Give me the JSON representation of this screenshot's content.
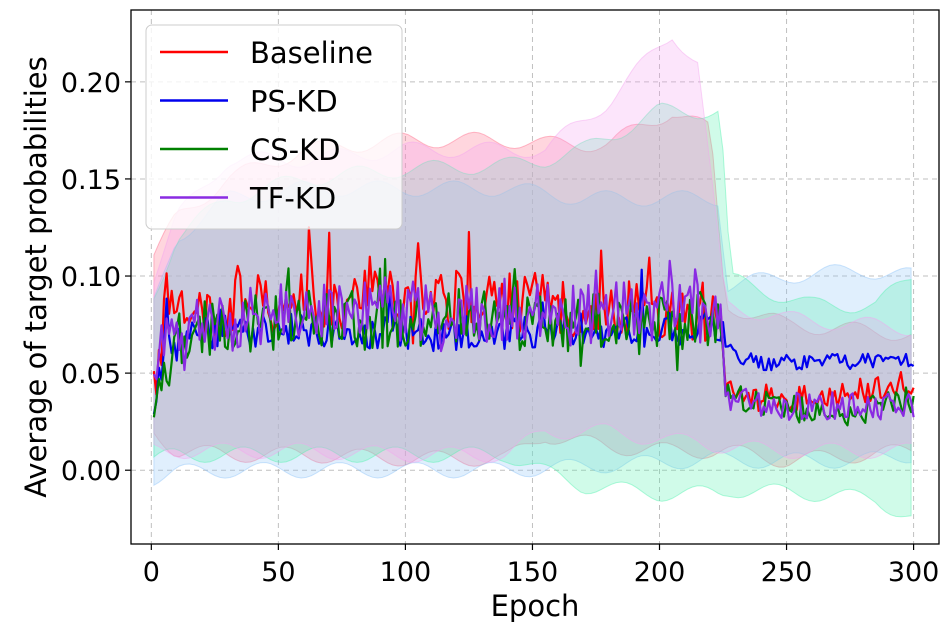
{
  "chart_data": {
    "type": "line",
    "title": "",
    "xlabel": "Epoch",
    "ylabel": "Average of target probabilities",
    "xlim": [
      -8,
      310
    ],
    "ylim": [
      -0.038,
      0.237
    ],
    "xticks": [
      0,
      50,
      100,
      150,
      200,
      250,
      300
    ],
    "yticks": [
      0.0,
      0.05,
      0.1,
      0.15,
      0.2
    ],
    "xtick_labels": [
      "0",
      "50",
      "100",
      "150",
      "200",
      "250",
      "300"
    ],
    "ytick_labels": [
      "0.00",
      "0.05",
      "0.10",
      "0.15",
      "0.20"
    ],
    "grid": true,
    "legend_position": "top-left",
    "series": [
      {
        "name": "Baseline",
        "color": "#ff0000",
        "band_color": "#ff6b8a",
        "mean_points": [
          [
            1,
            0.04
          ],
          [
            5,
            0.075
          ],
          [
            15,
            0.082
          ],
          [
            30,
            0.085
          ],
          [
            50,
            0.087
          ],
          [
            70,
            0.088
          ],
          [
            90,
            0.089
          ],
          [
            110,
            0.088
          ],
          [
            130,
            0.087
          ],
          [
            150,
            0.086
          ],
          [
            170,
            0.084
          ],
          [
            190,
            0.083
          ],
          [
            210,
            0.08
          ],
          [
            224,
            0.082
          ],
          [
            226,
            0.04
          ],
          [
            232,
            0.038
          ],
          [
            250,
            0.036
          ],
          [
            270,
            0.038
          ],
          [
            290,
            0.043
          ],
          [
            300,
            0.046
          ]
        ],
        "noise": 0.016,
        "band": [
          [
            1,
            0.11,
            0.02
          ],
          [
            10,
            0.13,
            0.01
          ],
          [
            30,
            0.15,
            0.008
          ],
          [
            60,
            0.165,
            0.008
          ],
          [
            100,
            0.17,
            0.006
          ],
          [
            140,
            0.17,
            0.006
          ],
          [
            155,
            0.168,
            0.018
          ],
          [
            180,
            0.168,
            0.012
          ],
          [
            205,
            0.185,
            0.01
          ],
          [
            220,
            0.175,
            0.01
          ],
          [
            226,
            0.085,
            0.01
          ],
          [
            250,
            0.075,
            0.005
          ],
          [
            300,
            0.07,
            0.01
          ]
        ]
      },
      {
        "name": "PS-KD",
        "color": "#0000ee",
        "band_color": "#8ec4f8",
        "mean_points": [
          [
            1,
            0.035
          ],
          [
            5,
            0.062
          ],
          [
            20,
            0.07
          ],
          [
            50,
            0.072
          ],
          [
            80,
            0.072
          ],
          [
            110,
            0.07
          ],
          [
            140,
            0.071
          ],
          [
            170,
            0.072
          ],
          [
            200,
            0.072
          ],
          [
            224,
            0.074
          ],
          [
            226,
            0.062
          ],
          [
            240,
            0.055
          ],
          [
            270,
            0.056
          ],
          [
            300,
            0.057
          ]
        ],
        "noise": 0.009,
        "band": [
          [
            1,
            0.085,
            -0.004
          ],
          [
            10,
            0.12,
            -0.001
          ],
          [
            30,
            0.14,
            0.0
          ],
          [
            60,
            0.145,
            0.0
          ],
          [
            100,
            0.145,
            0.0
          ],
          [
            140,
            0.145,
            0.0
          ],
          [
            170,
            0.14,
            0.002
          ],
          [
            200,
            0.14,
            0.004
          ],
          [
            224,
            0.14,
            0.006
          ],
          [
            226,
            0.095,
            0.005
          ],
          [
            250,
            0.1,
            0.005
          ],
          [
            280,
            0.103,
            0.005
          ],
          [
            300,
            0.1,
            0.008
          ]
        ]
      },
      {
        "name": "CS-KD",
        "color": "#008000",
        "band_color": "#55f2b0",
        "mean_points": [
          [
            1,
            0.028
          ],
          [
            5,
            0.06
          ],
          [
            20,
            0.075
          ],
          [
            50,
            0.078
          ],
          [
            80,
            0.078
          ],
          [
            110,
            0.078
          ],
          [
            140,
            0.076
          ],
          [
            170,
            0.076
          ],
          [
            200,
            0.075
          ],
          [
            224,
            0.08
          ],
          [
            226,
            0.04
          ],
          [
            240,
            0.035
          ],
          [
            260,
            0.03
          ],
          [
            280,
            0.03
          ],
          [
            300,
            0.037
          ]
        ],
        "noise": 0.016,
        "band": [
          [
            1,
            0.09,
            0.005
          ],
          [
            10,
            0.12,
            0.008
          ],
          [
            30,
            0.14,
            0.008
          ],
          [
            60,
            0.15,
            0.008
          ],
          [
            100,
            0.155,
            0.008
          ],
          [
            140,
            0.157,
            0.008
          ],
          [
            155,
            0.16,
            -0.001
          ],
          [
            170,
            0.165,
            -0.008
          ],
          [
            200,
            0.185,
            -0.012
          ],
          [
            224,
            0.185,
            -0.012
          ],
          [
            228,
            0.098,
            -0.01
          ],
          [
            260,
            0.085,
            -0.012
          ],
          [
            285,
            0.085,
            -0.015
          ],
          [
            300,
            0.1,
            -0.025
          ]
        ]
      },
      {
        "name": "TF-KD",
        "color": "#8a2be2",
        "band_color": "#f3a3ef",
        "mean_points": [
          [
            1,
            0.04
          ],
          [
            5,
            0.065
          ],
          [
            20,
            0.075
          ],
          [
            50,
            0.08
          ],
          [
            80,
            0.082
          ],
          [
            110,
            0.082
          ],
          [
            140,
            0.08
          ],
          [
            170,
            0.08
          ],
          [
            200,
            0.082
          ],
          [
            224,
            0.081
          ],
          [
            226,
            0.038
          ],
          [
            240,
            0.033
          ],
          [
            270,
            0.033
          ],
          [
            300,
            0.033
          ]
        ],
        "noise": 0.016,
        "band": [
          [
            1,
            0.1,
            0.01
          ],
          [
            10,
            0.13,
            0.01
          ],
          [
            30,
            0.16,
            0.01
          ],
          [
            60,
            0.16,
            0.01
          ],
          [
            100,
            0.165,
            0.008
          ],
          [
            140,
            0.165,
            0.008
          ],
          [
            155,
            0.165,
            0.02
          ],
          [
            180,
            0.19,
            0.02
          ],
          [
            205,
            0.225,
            0.015
          ],
          [
            215,
            0.21,
            0.015
          ],
          [
            226,
            0.085,
            0.012
          ],
          [
            250,
            0.078,
            0.01
          ],
          [
            300,
            0.073,
            0.01
          ]
        ]
      }
    ]
  }
}
